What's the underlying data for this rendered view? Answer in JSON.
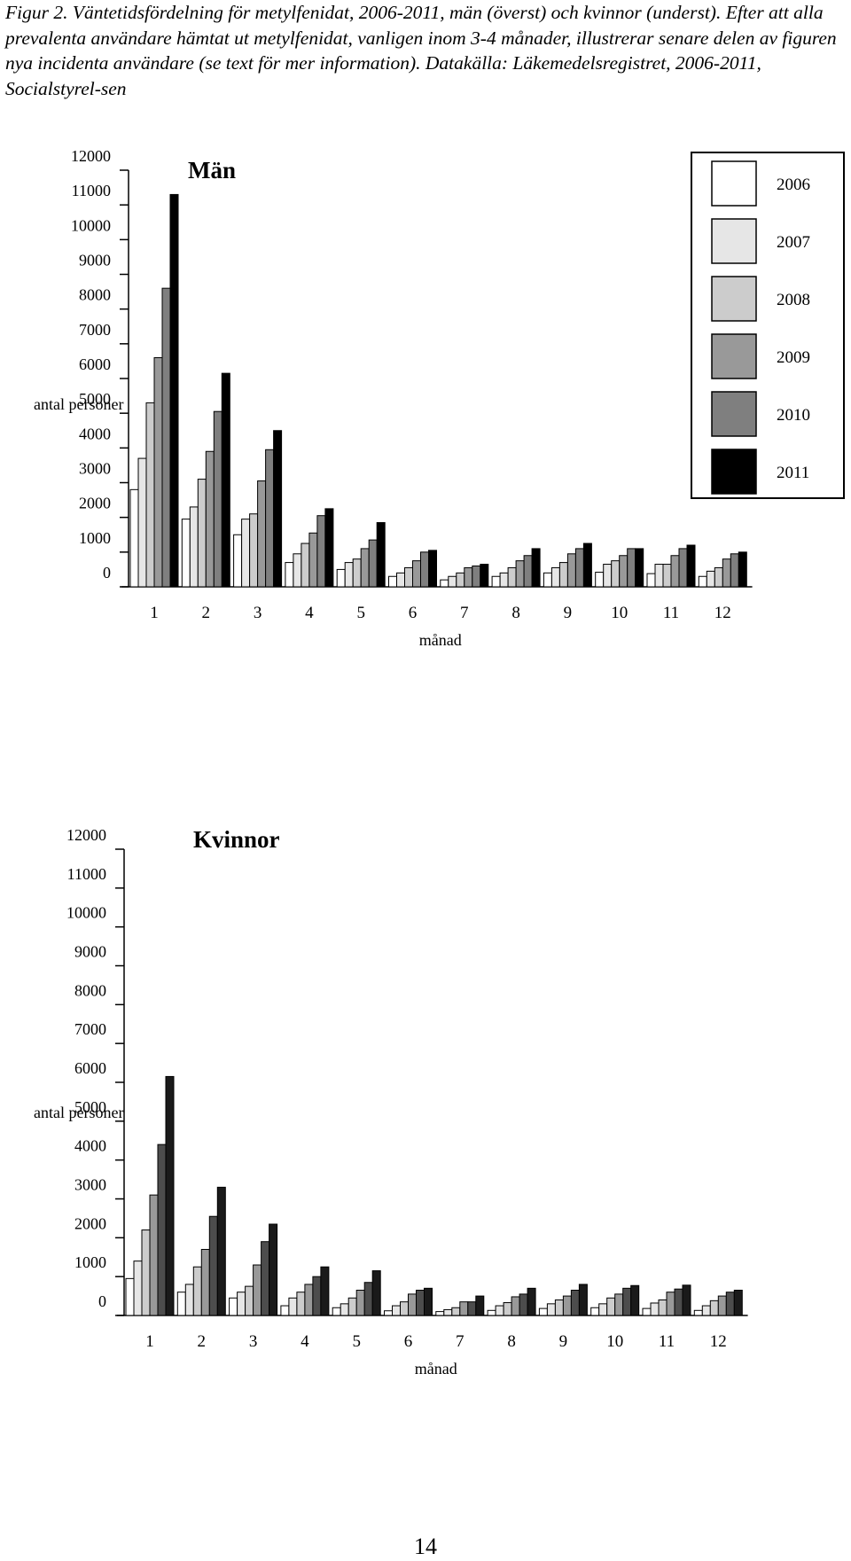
{
  "caption": "Figur 2. Väntetidsfördelning för metylfenidat, 2006-2011, män (överst) och kvinnor (underst). Efter att alla prevalenta användare hämtat ut metylfenidat, vanligen inom 3-4 månader, illustrerar senare delen av figuren nya incidenta användare (se text för mer information). Datakälla: Läkemedelsregistret, 2006-2011, Socialstyrel-sen",
  "page_number": "14",
  "colors": {
    "2006": "#ffffff",
    "2007": "#e6e6e6",
    "2008": "#cccccc",
    "2009": "#999999",
    "2010": "#7f7f7f",
    "2011": "#000000",
    "kvinnor_2010": "#4d4d4d",
    "kvinnor_2011": "#1a1a1a"
  },
  "legend": {
    "placement": "top-right of upper chart",
    "items": [
      "2006",
      "2007",
      "2008",
      "2009",
      "2010",
      "2011"
    ]
  },
  "chart_data": [
    {
      "type": "bar",
      "title": "Män",
      "xlabel": "månad",
      "ylabel": "antal personer",
      "ylim": [
        0,
        12000
      ],
      "yticks": [
        "0",
        "1000",
        "2000",
        "3000",
        "4000",
        "5000",
        "6000",
        "7000",
        "8000",
        "9000",
        "10000",
        "11000",
        "12000"
      ],
      "categories": [
        "1",
        "2",
        "3",
        "4",
        "5",
        "6",
        "7",
        "8",
        "9",
        "10",
        "11",
        "12"
      ],
      "series": [
        {
          "name": "2006",
          "values": [
            2800,
            1950,
            1500,
            700,
            500,
            300,
            200,
            300,
            400,
            420,
            380,
            300
          ]
        },
        {
          "name": "2007",
          "values": [
            3700,
            2300,
            1950,
            950,
            700,
            400,
            300,
            400,
            550,
            650,
            650,
            450
          ]
        },
        {
          "name": "2008",
          "values": [
            5300,
            3100,
            2100,
            1250,
            800,
            550,
            400,
            550,
            700,
            750,
            650,
            550
          ]
        },
        {
          "name": "2009",
          "values": [
            6600,
            3900,
            3050,
            1550,
            1100,
            750,
            550,
            750,
            950,
            900,
            900,
            800
          ]
        },
        {
          "name": "2010",
          "values": [
            8600,
            5050,
            3950,
            2050,
            1350,
            1000,
            600,
            900,
            1100,
            1100,
            1100,
            950
          ]
        },
        {
          "name": "2011",
          "values": [
            11300,
            6150,
            4500,
            2250,
            1850,
            1050,
            650,
            1100,
            1250,
            1100,
            1200,
            1000
          ]
        }
      ]
    },
    {
      "type": "bar",
      "title": "Kvinnor",
      "xlabel": "månad",
      "ylabel": "antal personer",
      "ylim": [
        0,
        12000
      ],
      "yticks": [
        "0",
        "1000",
        "2000",
        "3000",
        "4000",
        "5000",
        "6000",
        "7000",
        "8000",
        "9000",
        "10000",
        "11000",
        "12000"
      ],
      "categories": [
        "1",
        "2",
        "3",
        "4",
        "5",
        "6",
        "7",
        "8",
        "9",
        "10",
        "11",
        "12"
      ],
      "series": [
        {
          "name": "2006",
          "values": [
            950,
            600,
            450,
            250,
            200,
            120,
            100,
            130,
            180,
            200,
            180,
            130
          ]
        },
        {
          "name": "2007",
          "values": [
            1400,
            800,
            600,
            450,
            300,
            250,
            150,
            250,
            300,
            300,
            320,
            250
          ]
        },
        {
          "name": "2008",
          "values": [
            2200,
            1250,
            750,
            600,
            450,
            350,
            200,
            330,
            400,
            450,
            400,
            380
          ]
        },
        {
          "name": "2009",
          "values": [
            3100,
            1700,
            1300,
            800,
            650,
            550,
            350,
            480,
            500,
            550,
            600,
            500
          ]
        },
        {
          "name": "2010",
          "values": [
            4400,
            2550,
            1900,
            1000,
            850,
            650,
            350,
            550,
            650,
            700,
            680,
            600
          ]
        },
        {
          "name": "2011",
          "values": [
            6150,
            3300,
            2350,
            1250,
            1150,
            700,
            500,
            700,
            800,
            770,
            780,
            650
          ]
        }
      ]
    }
  ]
}
